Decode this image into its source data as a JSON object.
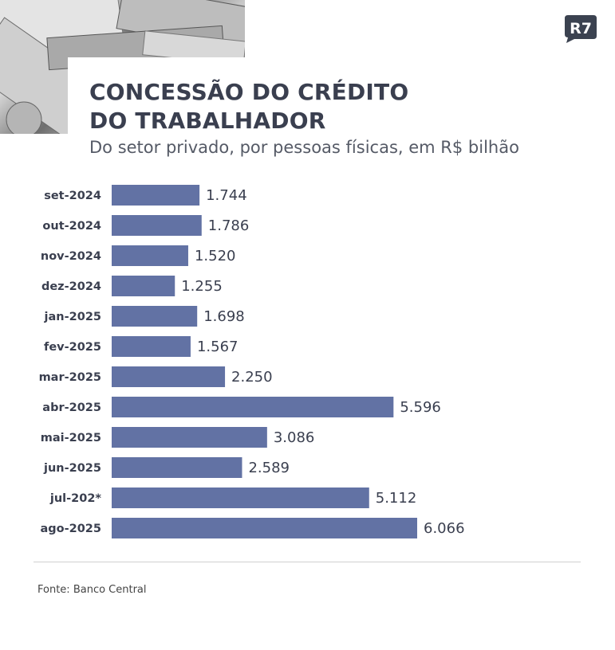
{
  "brand": {
    "logo_text": "R7",
    "logo_color": "#3b4250"
  },
  "header": {
    "title": "CONCESSÃO DO CRÉDITO\nDO TRABALHADOR",
    "subtitle": "Do setor privado, por pessoas físicas, em R$ bilhão"
  },
  "footer": {
    "source": "Fonte: Banco Central"
  },
  "colors": {
    "bar": "#6272a4",
    "text": "#3a3f4f"
  },
  "chart_data": {
    "type": "bar",
    "orientation": "horizontal",
    "title": "CONCESSÃO DO CRÉDITO DO TRABALHADOR",
    "subtitle": "Do setor privado, por pessoas físicas, em R$ bilhão",
    "categories": [
      "set-2024",
      "out-2024",
      "nov-2024",
      "dez-2024",
      "jan-2025",
      "fev-2025",
      "mar-2025",
      "abr-2025",
      "mai-2025",
      "jun-2025",
      "jul-202*",
      "ago-2025"
    ],
    "values": [
      1.744,
      1.786,
      1.52,
      1.255,
      1.698,
      1.567,
      2.25,
      5.596,
      3.086,
      2.589,
      5.112,
      6.066
    ],
    "value_labels": [
      "1.744",
      "1.786",
      "1.520",
      "1.255",
      "1.698",
      "1.567",
      "2.250",
      "5.596",
      "3.086",
      "2.589",
      "5.112",
      "6.066"
    ],
    "xlim": [
      0,
      6.066
    ],
    "grid": false,
    "legend": "none"
  }
}
